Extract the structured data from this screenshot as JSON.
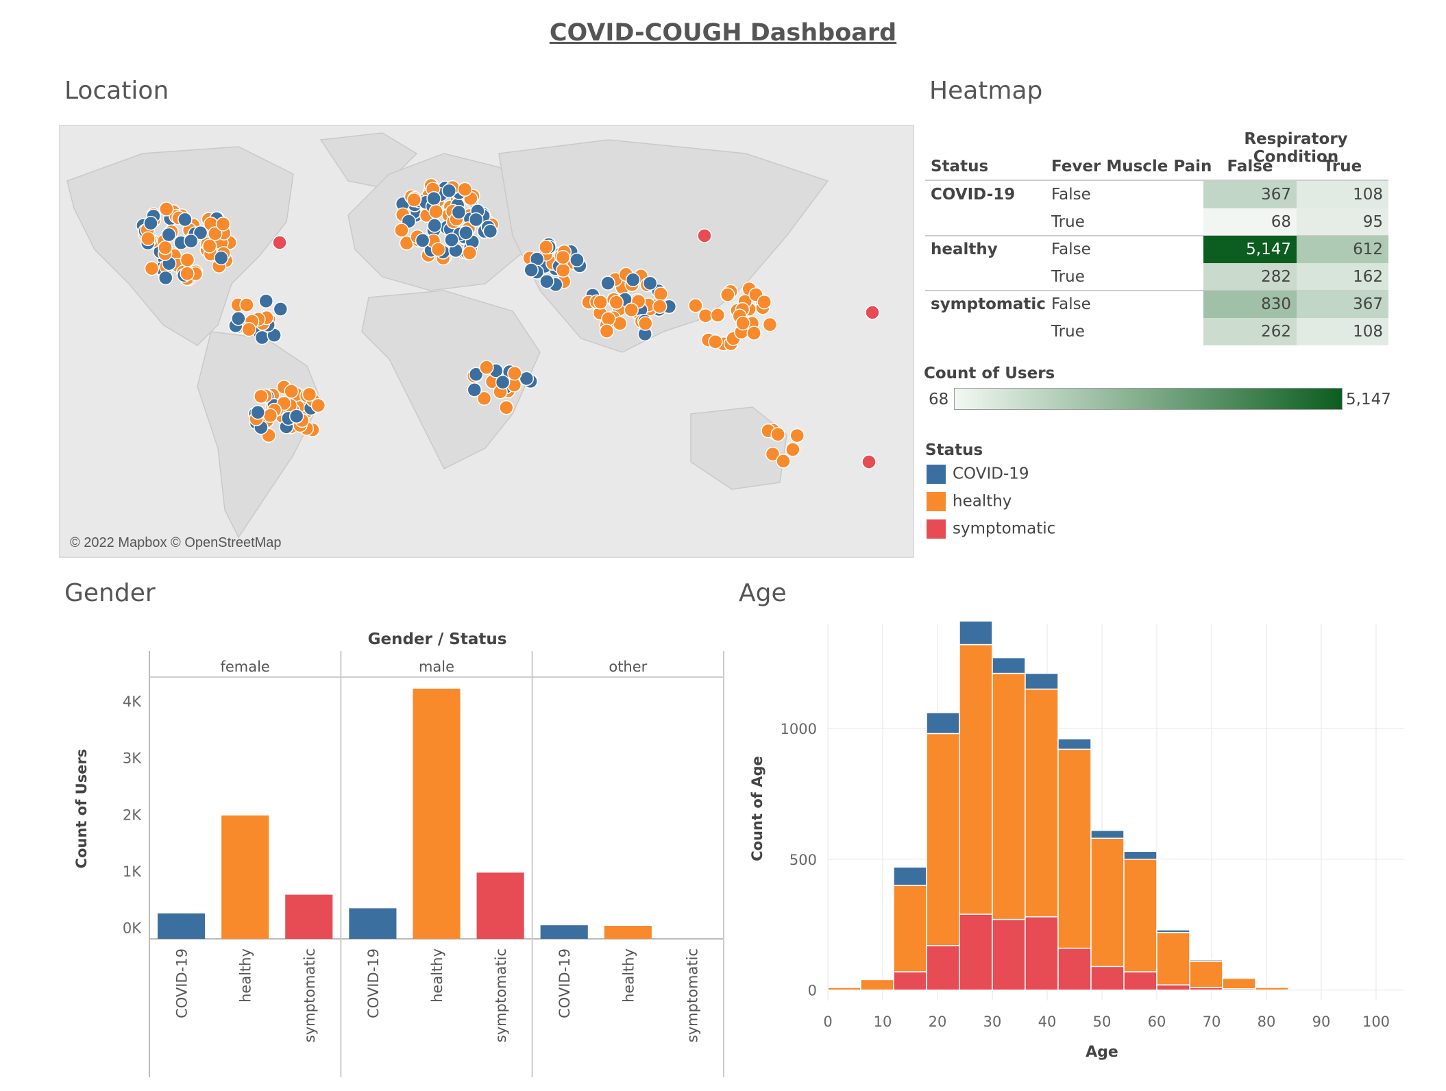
{
  "dashboard_title": "COVID-COUGH Dashboard",
  "colors": {
    "covid": "#3b6fa0",
    "healthy": "#f88a2c",
    "symptomatic": "#e74b54"
  },
  "sections": {
    "location": "Location",
    "heatmap": "Heatmap",
    "gender": "Gender",
    "age": "Age"
  },
  "map": {
    "credit": "© 2022 Mapbox © OpenStreetMap"
  },
  "heatmap": {
    "column_header": "Respiratory Condition",
    "headers": {
      "status": "Status",
      "fever": "Fever Muscle Pain",
      "false": "False",
      "true": "True"
    },
    "rows": [
      {
        "status": "COVID-19",
        "fever": "False",
        "false": "367",
        "true": "108"
      },
      {
        "status": "",
        "fever": "True",
        "false": "68",
        "true": "95"
      },
      {
        "status": "healthy",
        "fever": "False",
        "false": "5,147",
        "true": "612"
      },
      {
        "status": "",
        "fever": "True",
        "false": "282",
        "true": "162"
      },
      {
        "status": "symptomatic",
        "fever": "False",
        "false": "830",
        "true": "367"
      },
      {
        "status": "",
        "fever": "True",
        "false": "262",
        "true": "108"
      }
    ],
    "count_legend": {
      "title": "Count of Users",
      "min": "68",
      "max": "5,147"
    },
    "status_legend": {
      "title": "Status",
      "items": [
        "COVID-19",
        "healthy",
        "symptomatic"
      ]
    }
  },
  "chart_data": [
    {
      "type": "bar",
      "title": "Gender / Status",
      "xlabel": "",
      "ylabel": "Count of Users",
      "ylim": [
        -200,
        4400
      ],
      "yticks": [
        "0K",
        "1K",
        "2K",
        "3K",
        "4K"
      ],
      "panels": [
        {
          "name": "female",
          "categories": [
            "COVID-19",
            "healthy",
            "symptomatic"
          ],
          "values": [
            250,
            1980,
            580
          ]
        },
        {
          "name": "male",
          "categories": [
            "COVID-19",
            "healthy",
            "symptomatic"
          ],
          "values": [
            340,
            4220,
            970
          ]
        },
        {
          "name": "other",
          "categories": [
            "COVID-19",
            "healthy",
            "symptomatic"
          ],
          "values": [
            40,
            30,
            0
          ]
        }
      ]
    },
    {
      "type": "bar",
      "stacked": true,
      "title": "",
      "xlabel": "Age",
      "ylabel": "Count of Age",
      "xlim": [
        0,
        100
      ],
      "ylim": [
        -40,
        1400
      ],
      "xticks": [
        "0",
        "10",
        "20",
        "30",
        "40",
        "50",
        "60",
        "70",
        "80",
        "90",
        "100"
      ],
      "yticks": [
        "0",
        "500",
        "1000"
      ],
      "bins": [
        [
          0,
          6
        ],
        [
          6,
          12
        ],
        [
          12,
          18
        ],
        [
          18,
          24
        ],
        [
          24,
          30
        ],
        [
          30,
          36
        ],
        [
          36,
          42
        ],
        [
          42,
          48
        ],
        [
          48,
          54
        ],
        [
          54,
          60
        ],
        [
          60,
          66
        ],
        [
          66,
          72
        ],
        [
          72,
          78
        ],
        [
          78,
          84
        ]
      ],
      "series": [
        {
          "name": "symptomatic",
          "values": [
            0,
            0,
            70,
            170,
            290,
            270,
            280,
            160,
            90,
            70,
            20,
            10,
            5,
            0
          ]
        },
        {
          "name": "healthy",
          "values": [
            10,
            40,
            330,
            810,
            1030,
            940,
            870,
            760,
            490,
            430,
            200,
            100,
            40,
            10
          ]
        },
        {
          "name": "COVID-19",
          "values": [
            0,
            0,
            70,
            80,
            90,
            60,
            60,
            40,
            30,
            30,
            10,
            5,
            0,
            0
          ]
        }
      ]
    }
  ]
}
